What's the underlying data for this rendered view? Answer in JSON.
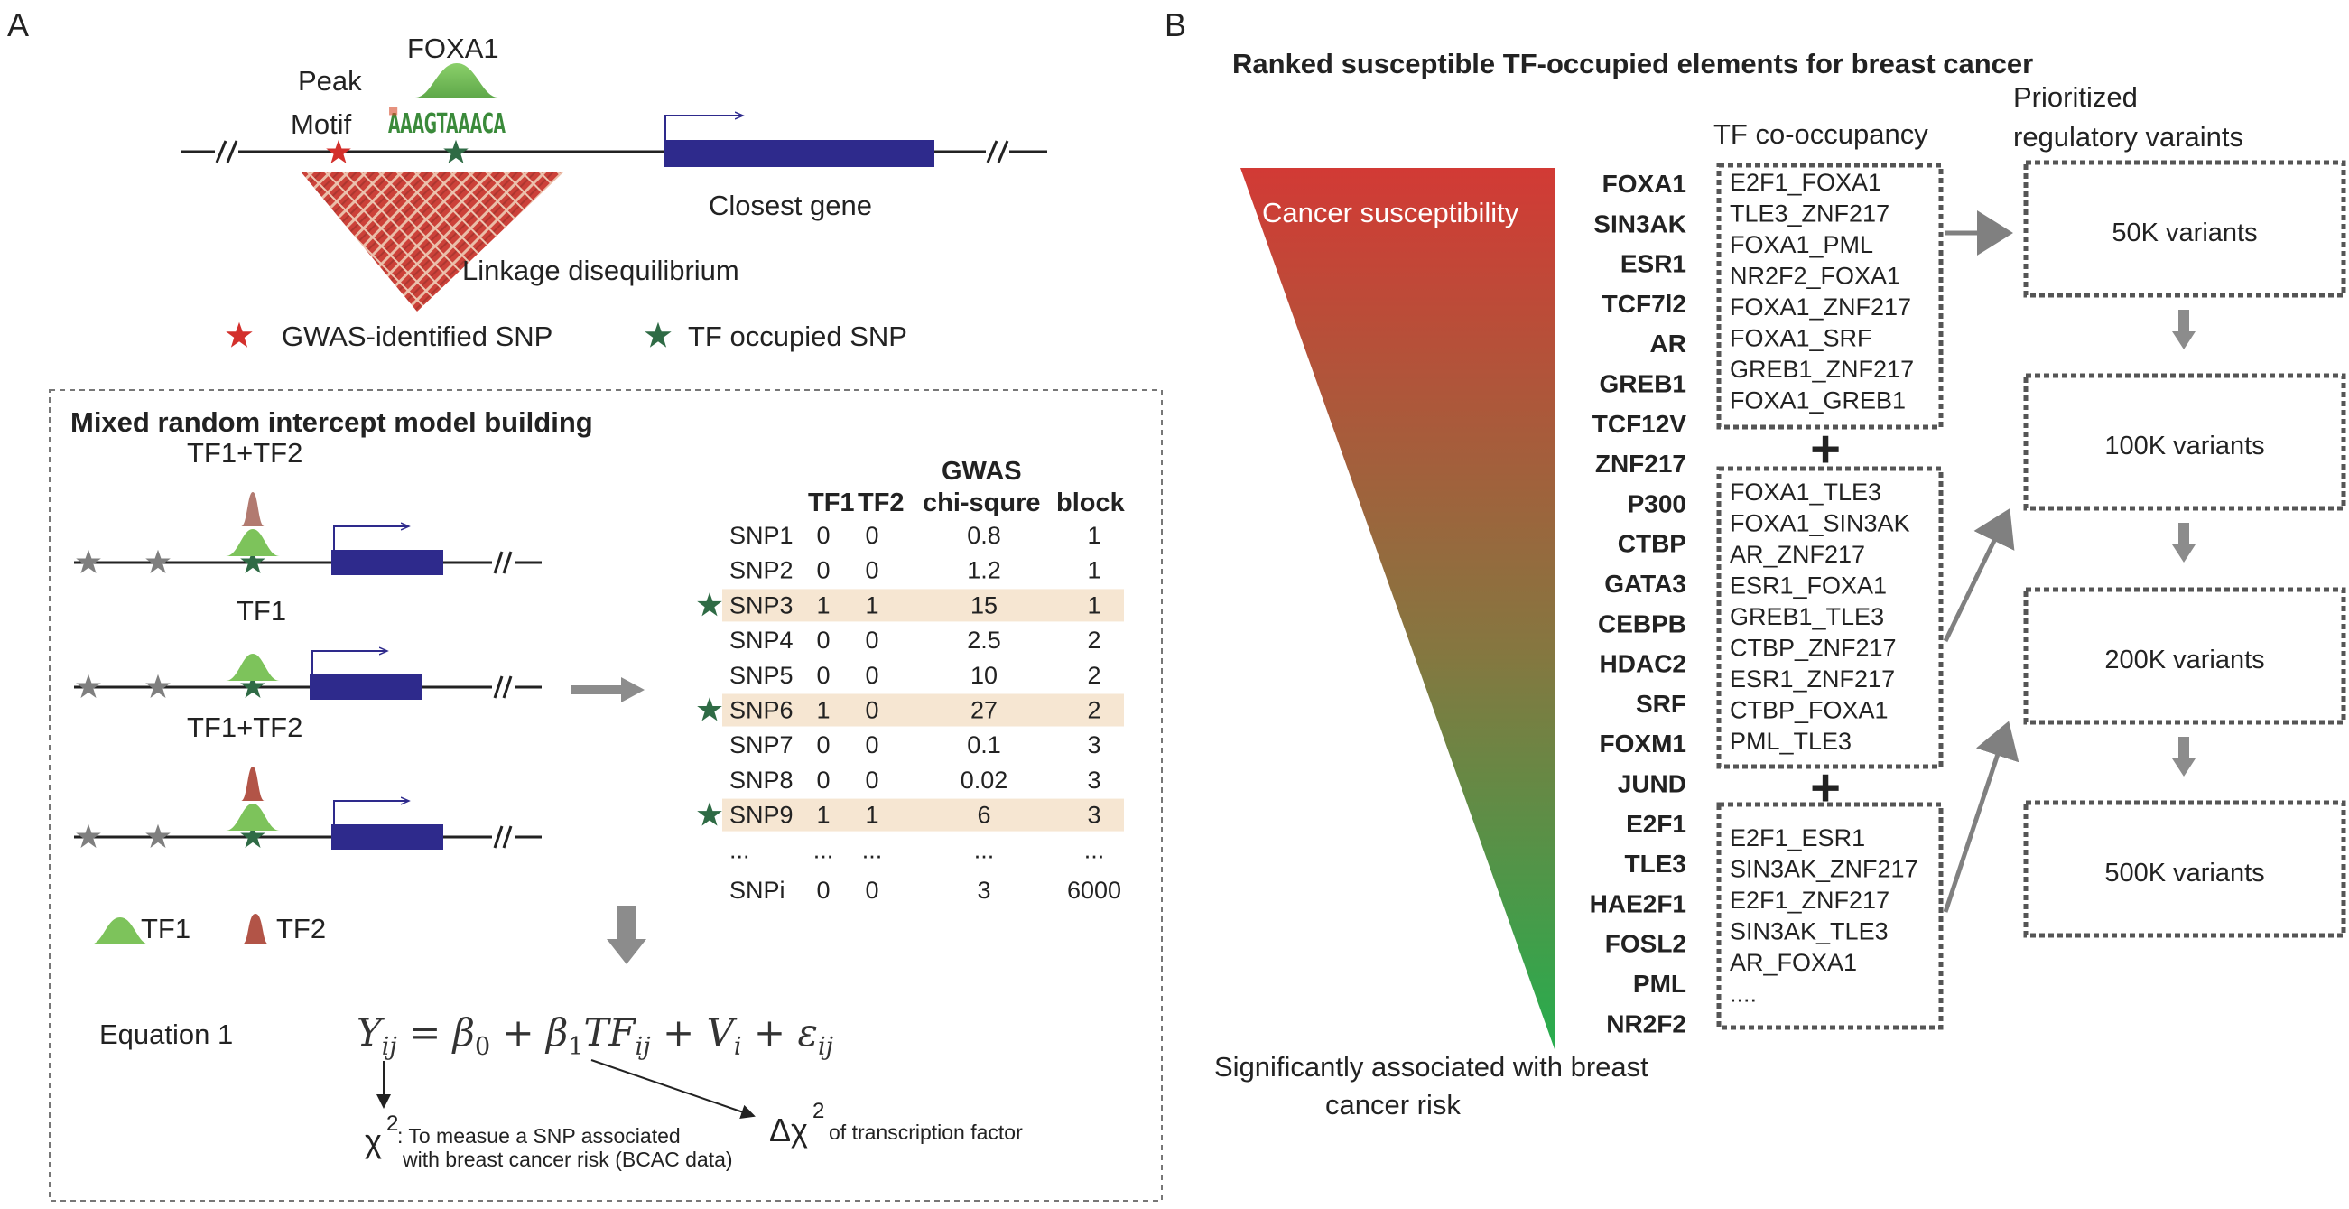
{
  "panel_a": {
    "label": "A",
    "locus": {
      "tf_name": "FOXA1",
      "peak_label": "Peak",
      "motif_label": "Motif",
      "motif_seq": "AAAGTAAACA",
      "closest_gene_label": "Closest gene",
      "ld_label": "Linkage disequilibrium"
    },
    "legend": {
      "gwas_snp": "GWAS-identified SNP",
      "tf_snp": "TF occupied SNP"
    },
    "model": {
      "title": "Mixed random intercept model building",
      "tracks": [
        {
          "label": "TF1+TF2"
        },
        {
          "label": "TF1"
        },
        {
          "label": "TF1+TF2"
        }
      ],
      "table": {
        "group_header": "GWAS",
        "columns": [
          "TF1",
          "TF2",
          "chi-squre",
          "block"
        ],
        "rows": [
          {
            "snp": "SNP1",
            "tf1": "0",
            "tf2": "0",
            "chi": "0.8",
            "block": "1",
            "highlight": false
          },
          {
            "snp": "SNP2",
            "tf1": "0",
            "tf2": "0",
            "chi": "1.2",
            "block": "1",
            "highlight": false
          },
          {
            "snp": "SNP3",
            "tf1": "1",
            "tf2": "1",
            "chi": "15",
            "block": "1",
            "highlight": true
          },
          {
            "snp": "SNP4",
            "tf1": "0",
            "tf2": "0",
            "chi": "2.5",
            "block": "2",
            "highlight": false
          },
          {
            "snp": "SNP5",
            "tf1": "0",
            "tf2": "0",
            "chi": "10",
            "block": "2",
            "highlight": false
          },
          {
            "snp": "SNP6",
            "tf1": "1",
            "tf2": "0",
            "chi": "27",
            "block": "2",
            "highlight": true
          },
          {
            "snp": "SNP7",
            "tf1": "0",
            "tf2": "0",
            "chi": "0.1",
            "block": "3",
            "highlight": false
          },
          {
            "snp": "SNP8",
            "tf1": "0",
            "tf2": "0",
            "chi": "0.02",
            "block": "3",
            "highlight": false
          },
          {
            "snp": "SNP9",
            "tf1": "1",
            "tf2": "1",
            "chi": "6",
            "block": "3",
            "highlight": true
          },
          {
            "snp": "...",
            "tf1": "...",
            "tf2": "...",
            "chi": "...",
            "block": "...",
            "highlight": false
          },
          {
            "snp": "SNPi",
            "tf1": "0",
            "tf2": "0",
            "chi": "3",
            "block": "6000",
            "highlight": false
          }
        ]
      },
      "legend_tf1": "TF1",
      "legend_tf2": "TF2",
      "equation_label": "Equation 1",
      "chi_symbol": "χ",
      "chi_note_line1": ": To measue a SNP associated",
      "chi_note_line2": "with breast cancer risk (BCAC data)",
      "delta_chi_symbol": "Δχ",
      "delta_note": "of transcription factor"
    }
  },
  "panel_b": {
    "label": "B",
    "title": "Ranked susceptible TF-occupied elements for breast cancer",
    "triangle_top_label": "Cancer susceptibility",
    "triangle_bottom_line1": "Significantly associated with breast",
    "triangle_bottom_line2": "cancer risk",
    "tfs": [
      "FOXA1",
      "SIN3AK",
      "ESR1",
      "TCF7l2",
      "AR",
      "GREB1",
      "TCF12V",
      "ZNF217",
      "P300",
      "CTBP",
      "GATA3",
      "CEBPB",
      "HDAC2",
      "SRF",
      "FOXM1",
      "JUND",
      "E2F1",
      "TLE3",
      "HAE2F1",
      "FOSL2",
      "PML",
      "NR2F2"
    ],
    "cooccupancy_header": "TF co-occupancy",
    "groups": [
      [
        "E2F1_FOXA1",
        "TLE3_ZNF217",
        "FOXA1_PML",
        "NR2F2_FOXA1",
        "FOXA1_ZNF217",
        "FOXA1_SRF",
        "GREB1_ZNF217",
        "FOXA1_GREB1"
      ],
      [
        "FOXA1_TLE3",
        "FOXA1_SIN3AK",
        "AR_ZNF217",
        "ESR1_FOXA1",
        "GREB1_TLE3",
        "CTBP_ZNF217",
        "ESR1_ZNF217",
        "CTBP_FOXA1",
        "PML_TLE3"
      ],
      [
        "E2F1_ESR1",
        "SIN3AK_ZNF217",
        "E2F1_ZNF217",
        "SIN3AK_TLE3",
        "AR_FOXA1",
        "...."
      ]
    ],
    "plus_sign": "+",
    "prioritized_header_line1": "Prioritized",
    "prioritized_header_line2": "regulatory varaints",
    "variant_sets": [
      "50K variants",
      "100K variants",
      "200K variants",
      "500K variants"
    ],
    "colors": {
      "gene_blue": "#2e2a8c",
      "gwas_star": "#d3302c",
      "tf_star": "#2f6b45",
      "tf1_green": "#7dc35b",
      "tf2_red": "#b25447",
      "highlight": "#f6e6d2",
      "triangle_top": "#d23a35",
      "triangle_bottom": "#27ad4e"
    }
  }
}
